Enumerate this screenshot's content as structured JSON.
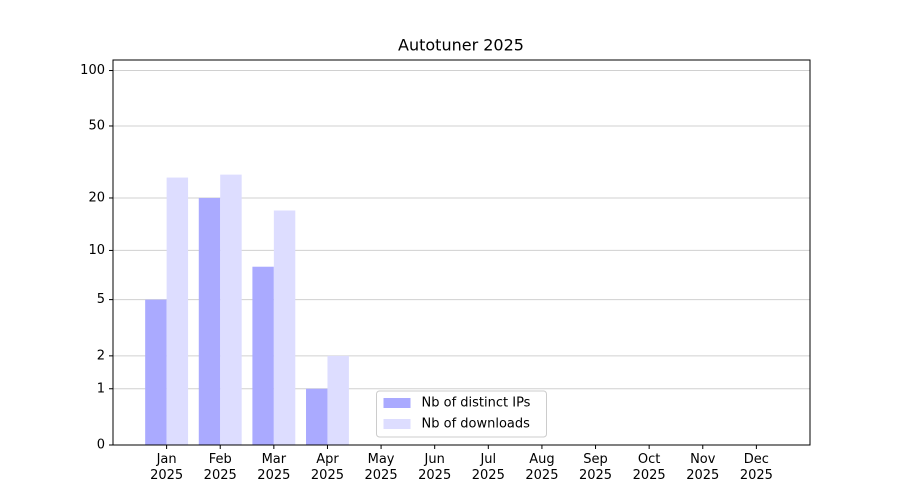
{
  "chart_data": {
    "type": "bar",
    "title": "Autotuner 2025",
    "categories": [
      "Jan\n2025",
      "Feb\n2025",
      "Mar\n2025",
      "Apr\n2025",
      "May\n2025",
      "Jun\n2025",
      "Jul\n2025",
      "Aug\n2025",
      "Sep\n2025",
      "Oct\n2025",
      "Nov\n2025",
      "Dec\n2025"
    ],
    "series": [
      {
        "name": "Nb of distinct IPs",
        "color": "#aaaaff",
        "values": [
          5,
          20,
          8,
          1,
          null,
          null,
          null,
          null,
          null,
          null,
          null,
          null
        ]
      },
      {
        "name": "Nb of downloads",
        "color": "#ddddff",
        "values": [
          26,
          27,
          17,
          2,
          null,
          null,
          null,
          null,
          null,
          null,
          null,
          null
        ]
      }
    ],
    "yscale": "log1p",
    "ylim": [
      0,
      114
    ],
    "yticks": [
      0,
      1,
      2,
      5,
      10,
      20,
      50,
      100
    ],
    "grid": true,
    "legend": "lower center"
  }
}
